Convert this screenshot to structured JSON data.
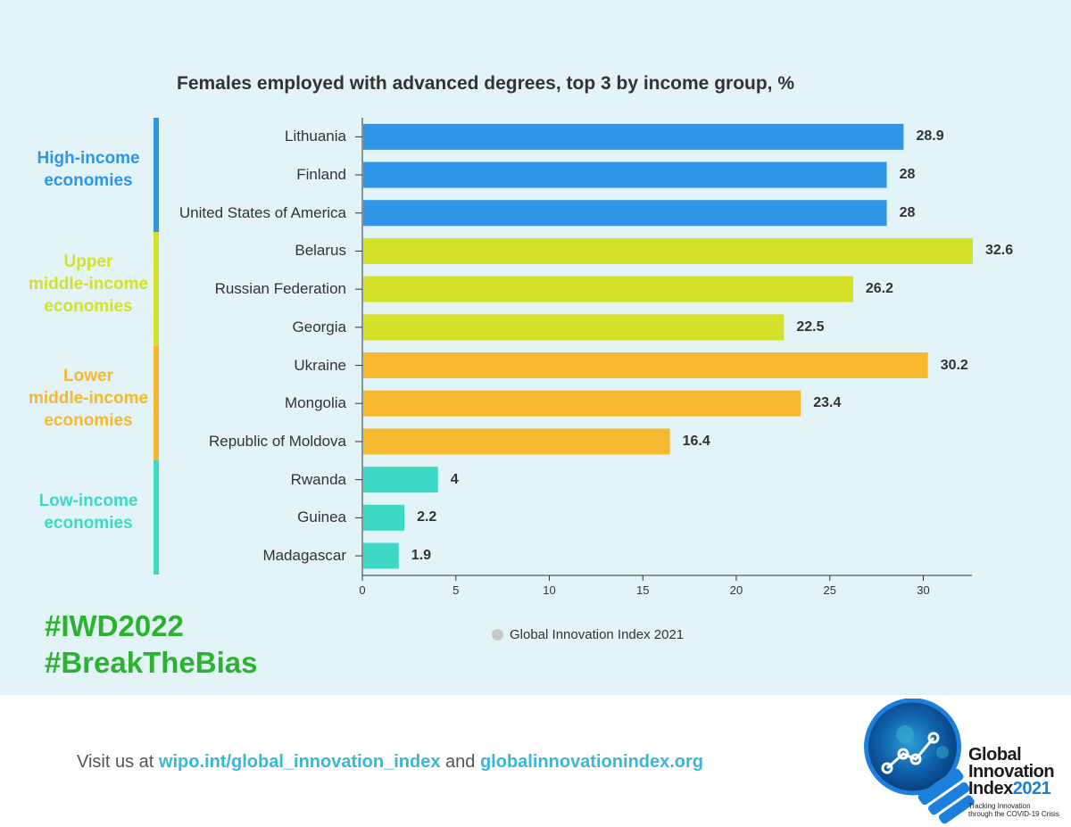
{
  "chart_data": {
    "type": "bar",
    "orientation": "horizontal",
    "title": "Females employed with advanced degrees, top 3 by income group, %",
    "categories": [
      "Lithuania",
      "Finland",
      "United States of America",
      "Belarus",
      "Russian Federation",
      "Georgia",
      "Ukraine",
      "Mongolia",
      "Republic of Moldova",
      "Rwanda",
      "Guinea",
      "Madagascar"
    ],
    "values": [
      28.9,
      28,
      28,
      32.6,
      26.2,
      22.5,
      30.2,
      23.4,
      16.4,
      4,
      2.2,
      1.9
    ],
    "value_labels": [
      "28.9",
      "28",
      "28",
      "32.6",
      "26.2",
      "22.5",
      "30.2",
      "23.4",
      "16.4",
      "4",
      "2.2",
      "1.9"
    ],
    "groups": [
      {
        "label": "High-income economies",
        "label_lines": [
          "High-income",
          "economies"
        ],
        "color": "#2f95e8",
        "categories": [
          "Lithuania",
          "Finland",
          "United States of America"
        ]
      },
      {
        "label": "Upper middle-income economies",
        "label_lines": [
          "Upper",
          "middle-income",
          "economies"
        ],
        "color": "#d5e028",
        "categories": [
          "Belarus",
          "Russian Federation",
          "Georgia"
        ]
      },
      {
        "label": "Lower middle-income economies",
        "label_lines": [
          "Lower",
          "middle-income",
          "economies"
        ],
        "color": "#f5b82e",
        "categories": [
          "Ukraine",
          "Mongolia",
          "Republic of Moldova"
        ]
      },
      {
        "label": "Low-income economies",
        "label_lines": [
          "Low-income",
          "economies"
        ],
        "color": "#3dd9c4",
        "categories": [
          "Rwanda",
          "Guinea",
          "Madagascar"
        ]
      }
    ],
    "xlim": [
      0,
      32.6
    ],
    "xticks": [
      0,
      5,
      10,
      15,
      20,
      25,
      30
    ],
    "xlabel": "",
    "ylabel": "",
    "grid": false,
    "legend": {
      "position": "bottom",
      "entries": [
        {
          "name": "Global Innovation Index 2021",
          "color": "#c8c8c8"
        }
      ]
    }
  },
  "hashtags": [
    "#IWD2022",
    "#BreakTheBias"
  ],
  "footer": {
    "prefix": "Visit us at ",
    "link1": "wipo.int/global_innovation_index",
    "middle": " and ",
    "link2": "globalinnovationindex.org"
  },
  "logo": {
    "line1": "Global",
    "line2": "Innovation",
    "line3_word": "Index",
    "line3_year": "2021",
    "sub1": "Tracking Innovation",
    "sub2": "through the COVID-19 Crisis"
  },
  "colors": {
    "background": "#e2f4f8",
    "hashtag": "#2bb32f",
    "link": "#39b7d4"
  }
}
